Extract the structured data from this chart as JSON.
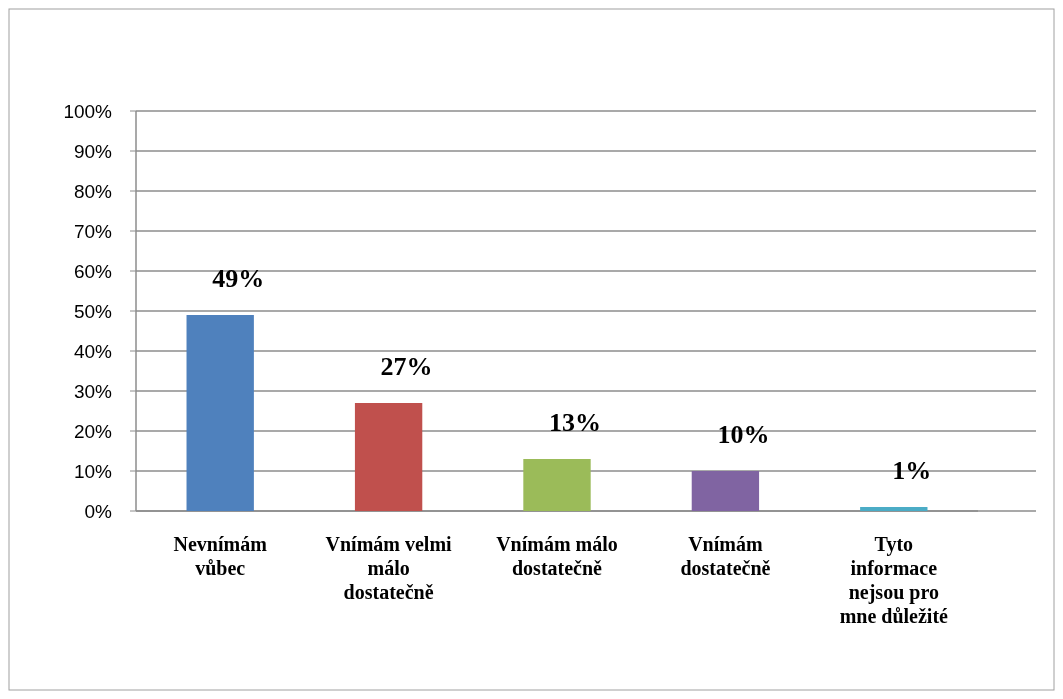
{
  "chart_data": {
    "type": "bar",
    "categories": [
      "Nevnímám vůbec",
      "Vnímám velmi málo dostatečně",
      "Vnímám málo dostatečně",
      "Vnímám dostatečně",
      "Tyto informace nejsou pro mne důležité"
    ],
    "values": [
      49,
      27,
      13,
      10,
      1
    ],
    "colors": [
      "#4f81bd",
      "#c0504d",
      "#9bbb59",
      "#8064a2",
      "#4bacc6"
    ],
    "value_labels": [
      "49%",
      "27%",
      "13%",
      "10%",
      "1%"
    ],
    "ylim": [
      0,
      100
    ],
    "yticks": [
      {
        "value": 0,
        "label": "0%"
      },
      {
        "value": 10,
        "label": "10%"
      },
      {
        "value": 20,
        "label": "20%"
      },
      {
        "value": 30,
        "label": "30%"
      },
      {
        "value": 40,
        "label": "40%"
      },
      {
        "value": 50,
        "label": "50%"
      },
      {
        "value": 60,
        "label": "60%"
      },
      {
        "value": 70,
        "label": "70%"
      },
      {
        "value": 80,
        "label": "80%"
      },
      {
        "value": 90,
        "label": "90%"
      },
      {
        "value": 100,
        "label": "100%"
      }
    ],
    "grid": "y"
  }
}
